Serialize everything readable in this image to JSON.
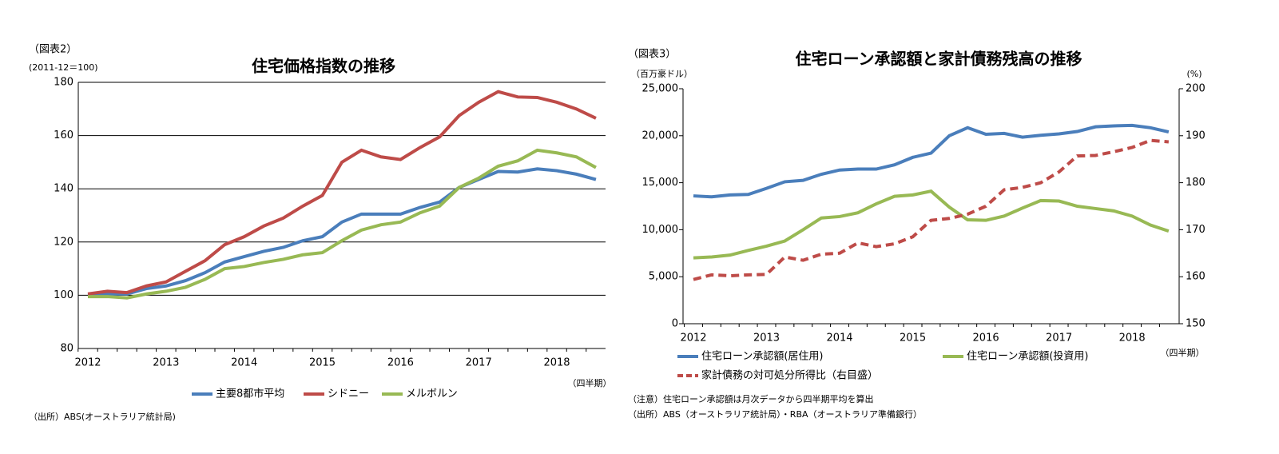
{
  "chart_data": [
    {
      "type": "line",
      "figure_label": "（図表2）",
      "y_unit": "(2011-12＝100)",
      "title": "住宅価格指数の推移",
      "x_unit": "（四半期）",
      "categories": [
        "2012",
        null,
        null,
        null,
        "2013",
        null,
        null,
        null,
        "2014",
        null,
        null,
        null,
        "2015",
        null,
        null,
        null,
        "2016",
        null,
        null,
        null,
        "2017",
        null,
        null,
        null,
        "2018",
        null,
        null
      ],
      "series": [
        {
          "name": "主要8都市平均",
          "color": "#4a7ebb",
          "values": [
            100,
            100.5,
            100.5,
            102.5,
            103.5,
            105.5,
            108.5,
            112.5,
            114.5,
            116.5,
            118,
            120.5,
            122,
            127.5,
            130.5,
            130.5,
            130.5,
            133,
            135,
            140.5,
            143.5,
            146.5,
            146.3,
            147.5,
            146.8,
            145.5,
            143.5
          ]
        },
        {
          "name": "シドニー",
          "color": "#be4b48",
          "values": [
            100.5,
            101.5,
            101,
            103.5,
            105,
            109,
            113,
            119,
            122,
            126,
            129,
            133.5,
            137.5,
            150,
            154.5,
            152,
            151,
            155.5,
            159.5,
            167.5,
            172.5,
            176.5,
            174.5,
            174.3,
            172.5,
            170,
            166.5
          ]
        },
        {
          "name": "メルボルン",
          "color": "#98b954",
          "values": [
            99.5,
            99.5,
            99,
            100.5,
            101.5,
            103,
            106,
            110,
            110.8,
            112.3,
            113.5,
            115.2,
            116,
            120.5,
            124.5,
            126.5,
            127.5,
            131,
            133.5,
            140.5,
            144,
            148.5,
            150.5,
            154.5,
            153.5,
            152,
            148
          ]
        }
      ],
      "ylim": [
        80,
        180
      ],
      "yticks": [
        80,
        100,
        120,
        140,
        160,
        180
      ],
      "grid": true,
      "notes": [
        "（出所）ABS(オーストラリア統計局)"
      ]
    },
    {
      "type": "line",
      "figure_label": "（図表3）",
      "y_unit": "（百万豪ドル）",
      "y2_unit": "(%)",
      "title": "住宅ローン承認額と家計債務残高の推移",
      "x_unit": "（四半期）",
      "categories": [
        "2012",
        null,
        null,
        null,
        "2013",
        null,
        null,
        null,
        "2014",
        null,
        null,
        null,
        "2015",
        null,
        null,
        null,
        "2016",
        null,
        null,
        null,
        "2017",
        null,
        null,
        null,
        "2018",
        null,
        null
      ],
      "series": [
        {
          "name": "住宅ローン承認額(居住用)",
          "color": "#4a7ebb",
          "values": [
            13600,
            13500,
            13700,
            13750,
            14400,
            15100,
            15250,
            15900,
            16350,
            16450,
            16450,
            16900,
            17700,
            18150,
            20000,
            20850,
            20150,
            20250,
            19850,
            20050,
            20200,
            20450,
            20950,
            21050,
            21100,
            20850,
            20400
          ]
        },
        {
          "name": "住宅ローン承認額(投資用)",
          "color": "#98b954",
          "values": [
            7000,
            7100,
            7300,
            7800,
            8250,
            8800,
            10000,
            11250,
            11400,
            11800,
            12750,
            13550,
            13700,
            14100,
            12400,
            11050,
            11000,
            11450,
            12300,
            13100,
            13050,
            12500,
            12250,
            12000,
            11450,
            10500,
            9850
          ]
        },
        {
          "name": "家計債務の対可処分所得比（右目盛）",
          "color": "#be4b48",
          "dash": true,
          "axis": "y2",
          "values": [
            159.4,
            160.4,
            160.2,
            160.4,
            160.5,
            164.2,
            163.5,
            164.8,
            165,
            167.2,
            166.4,
            167,
            168.5,
            172,
            172.4,
            173.3,
            175,
            178.5,
            179,
            180,
            182.3,
            185.7,
            185.8,
            186.6,
            187.5,
            189,
            188.7
          ]
        }
      ],
      "ylim": [
        0,
        25000
      ],
      "yticks": [
        0,
        {
          "value": 5000,
          "label": "5,000"
        },
        {
          "value": 10000,
          "label": "10,000"
        },
        {
          "value": 15000,
          "label": "15,000"
        },
        {
          "value": 20000,
          "label": "20,000"
        },
        {
          "value": 25000,
          "label": "25,000"
        }
      ],
      "y2lim": [
        150,
        200
      ],
      "y2ticks": [
        150,
        160,
        170,
        180,
        190,
        200
      ],
      "grid": false,
      "notes": [
        "（注意）住宅ローン承認額は月次データから四半期平均を算出",
        "（出所）ABS（オーストラリア統計局）・RBA（オーストラリア準備銀行）"
      ]
    }
  ]
}
